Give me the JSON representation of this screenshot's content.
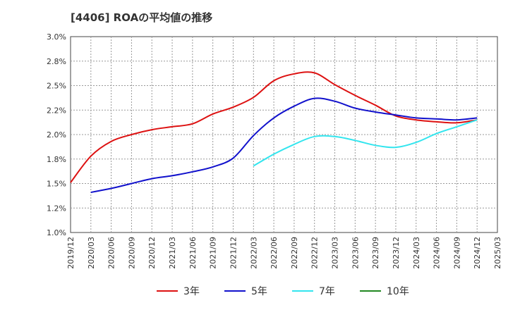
{
  "chart_data": {
    "type": "line",
    "title": "[4406]  ROAの平均値の推移",
    "xlabel": "",
    "ylabel": "",
    "ylim": [
      1.0,
      3.0
    ],
    "y_ticks": [
      1.0,
      1.25,
      1.5,
      1.75,
      2.0,
      2.25,
      2.5,
      2.75,
      3.0
    ],
    "y_tick_labels": [
      "1.0%",
      "1.2%",
      "1.5%",
      "1.8%",
      "2.0%",
      "2.2%",
      "2.5%",
      "2.8%",
      "3.0%"
    ],
    "x_tick_labels": [
      "2019/12",
      "2020/03",
      "2020/06",
      "2020/09",
      "2020/12",
      "2021/03",
      "2021/06",
      "2021/09",
      "2021/12",
      "2022/03",
      "2022/06",
      "2022/09",
      "2022/12",
      "2023/03",
      "2023/06",
      "2023/09",
      "2023/12",
      "2024/03",
      "2024/06",
      "2024/09",
      "2024/12",
      "2025/03"
    ],
    "grid": true,
    "legend_placement": "bottom",
    "series": [
      {
        "name": "3年",
        "color": "#dd1111",
        "x": [
          "2019/12",
          "2020/03",
          "2020/06",
          "2020/09",
          "2020/12",
          "2021/03",
          "2021/06",
          "2021/09",
          "2021/12",
          "2022/03",
          "2022/06",
          "2022/09",
          "2022/12",
          "2023/03",
          "2023/06",
          "2023/09",
          "2023/12",
          "2024/03",
          "2024/06",
          "2024/09",
          "2024/12"
        ],
        "values": [
          1.51,
          1.78,
          1.93,
          2.0,
          2.05,
          2.08,
          2.11,
          2.21,
          2.28,
          2.38,
          2.55,
          2.62,
          2.63,
          2.51,
          2.4,
          2.3,
          2.19,
          2.15,
          2.13,
          2.12,
          2.15
        ]
      },
      {
        "name": "5年",
        "color": "#1111cc",
        "x": [
          "2020/03",
          "2020/06",
          "2020/09",
          "2020/12",
          "2021/03",
          "2021/06",
          "2021/09",
          "2021/12",
          "2022/03",
          "2022/06",
          "2022/09",
          "2022/12",
          "2023/03",
          "2023/06",
          "2023/09",
          "2023/12",
          "2024/03",
          "2024/06",
          "2024/09",
          "2024/12"
        ],
        "values": [
          1.41,
          1.45,
          1.5,
          1.55,
          1.58,
          1.62,
          1.67,
          1.76,
          1.99,
          2.17,
          2.29,
          2.37,
          2.34,
          2.27,
          2.23,
          2.2,
          2.17,
          2.16,
          2.15,
          2.17
        ]
      },
      {
        "name": "7年",
        "color": "#33e5ee",
        "x": [
          "2022/03",
          "2022/06",
          "2022/09",
          "2022/12",
          "2023/03",
          "2023/06",
          "2023/09",
          "2023/12",
          "2024/03",
          "2024/06",
          "2024/09",
          "2024/12"
        ],
        "values": [
          1.68,
          1.8,
          1.9,
          1.98,
          1.98,
          1.94,
          1.89,
          1.87,
          1.92,
          2.01,
          2.08,
          2.15
        ]
      },
      {
        "name": "10年",
        "color": "#228822",
        "x": [],
        "values": []
      }
    ]
  }
}
